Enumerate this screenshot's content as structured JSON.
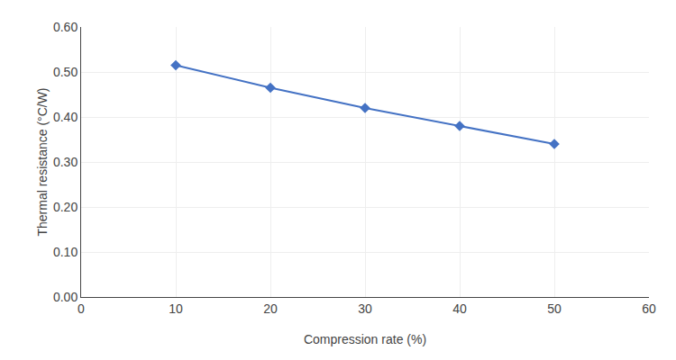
{
  "chart_data": {
    "type": "line",
    "x": [
      10,
      20,
      30,
      40,
      50
    ],
    "values": [
      0.515,
      0.465,
      0.42,
      0.38,
      0.34
    ],
    "xlabel": "Compression rate (%)",
    "ylabel": "Thermal resistance (°C/W)",
    "xlim": [
      0,
      60
    ],
    "ylim": [
      0.0,
      0.6
    ],
    "xticks": [
      0,
      10,
      20,
      30,
      40,
      50,
      60
    ],
    "yticks": [
      {
        "value": 0.0,
        "label": "0.00"
      },
      {
        "value": 0.1,
        "label": "0.10"
      },
      {
        "value": 0.2,
        "label": "0.20"
      },
      {
        "value": 0.3,
        "label": "0.30"
      },
      {
        "value": 0.4,
        "label": "0.40"
      },
      {
        "value": 0.5,
        "label": "0.50"
      },
      {
        "value": 0.6,
        "label": "0.60"
      }
    ],
    "color": "#4472C4",
    "marker": "diamond",
    "grid": true
  }
}
